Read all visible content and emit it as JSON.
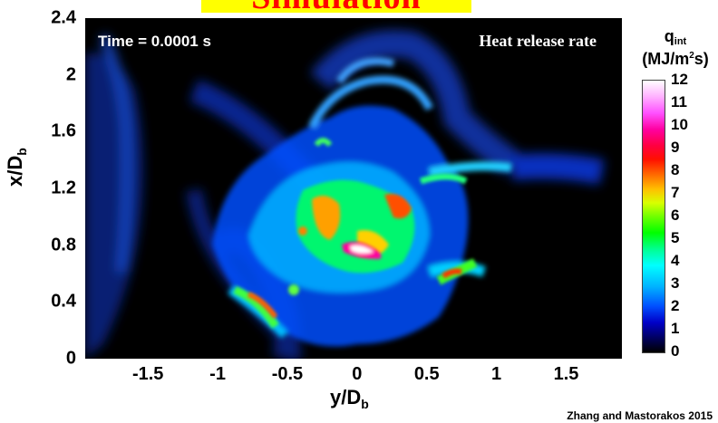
{
  "header": {
    "text": "Simulation"
  },
  "plot": {
    "time_label": "Time = 0.0001 s",
    "panel_label": "Heat release rate"
  },
  "chart_data": {
    "type": "heatmap",
    "title": "",
    "xlabel_main": "y/D",
    "xlabel_sub": "b",
    "ylabel_main": "x/D",
    "ylabel_sub": "b",
    "xlim": [
      -1.95,
      1.9
    ],
    "ylim": [
      0,
      2.4
    ],
    "x_ticks": [
      "-1.5",
      "-1",
      "-0.5",
      "0",
      "0.5",
      "1",
      "1.5"
    ],
    "x_tick_values": [
      -1.5,
      -1,
      -0.5,
      0,
      0.5,
      1,
      1.5
    ],
    "y_ticks": [
      "0",
      "0.4",
      "0.8",
      "1.2",
      "1.6",
      "2",
      "2.4"
    ],
    "y_tick_values": [
      0,
      0.4,
      0.8,
      1.2,
      1.6,
      2.0,
      2.4
    ],
    "colorbar": {
      "label_main": "q",
      "label_sub": "int",
      "units_main": "(MJ/m",
      "units_sup": "2",
      "units_end": "s)",
      "ticks": [
        "0",
        "1",
        "2",
        "3",
        "4",
        "5",
        "6",
        "7",
        "8",
        "9",
        "10",
        "11",
        "12"
      ],
      "tick_values": [
        0,
        1,
        2,
        3,
        4,
        5,
        6,
        7,
        8,
        9,
        10,
        11,
        12
      ],
      "range": [
        0,
        12
      ]
    }
  },
  "citation": "Zhang and Mastorakos 2015"
}
